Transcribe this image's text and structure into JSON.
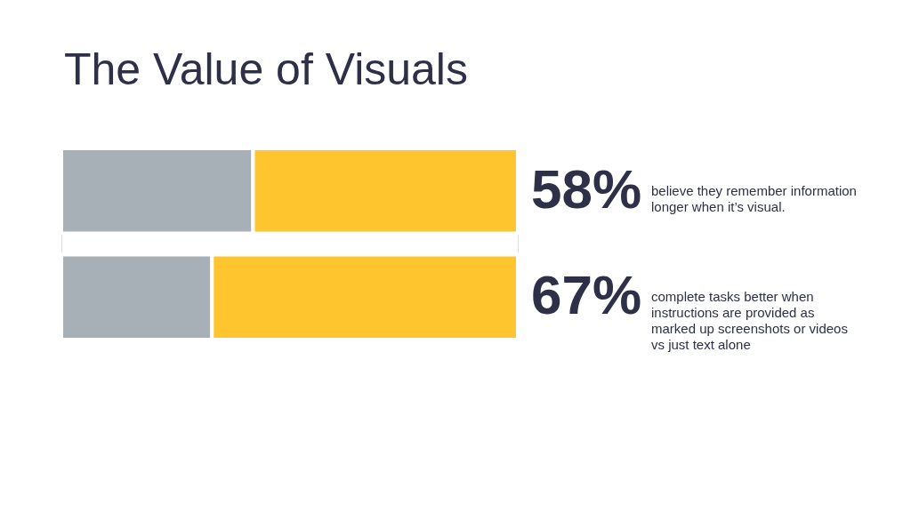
{
  "chart_data": {
    "type": "bar",
    "orientation": "horizontal",
    "stacked": true,
    "title": "The Value of Visuals",
    "categories": [
      null,
      null
    ],
    "series": [
      {
        "color": "#a8b0b7",
        "values": [
          42,
          33
        ]
      },
      {
        "color": "#fec52e",
        "values": [
          58,
          67
        ],
        "value_labels": [
          "58%",
          "67%"
        ]
      }
    ],
    "xlim": [
      0,
      100
    ],
    "tick_labels": false,
    "annotations": [
      "believe they remember information longer when it’s visual.",
      "complete tasks better when instructions are provided as marked up screenshots or videos vs just text alone"
    ]
  }
}
